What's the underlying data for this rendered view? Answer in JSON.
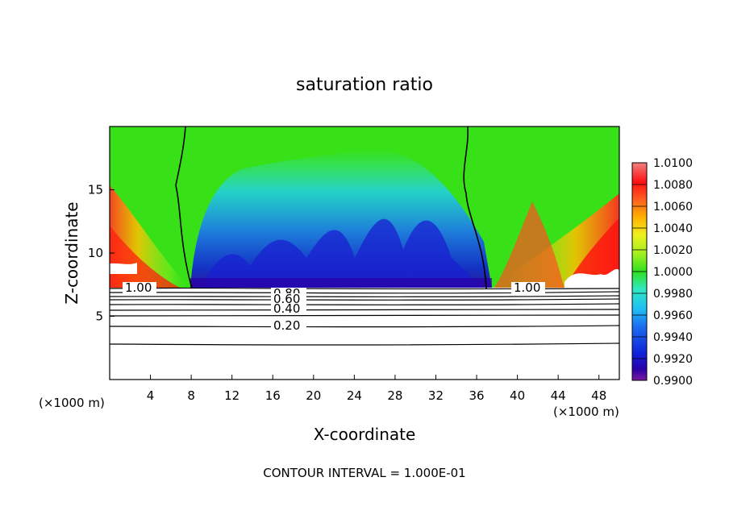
{
  "chart_data": {
    "type": "heatmap",
    "title": "saturation ratio",
    "xlabel": "X-coordinate",
    "ylabel": "Z-coordinate",
    "x_unit_left": "(×1000 m)",
    "x_unit_right": "(×1000 m)",
    "xlim": [
      0,
      50
    ],
    "ylim": [
      0,
      20
    ],
    "xticks": [
      4,
      8,
      12,
      16,
      20,
      24,
      28,
      32,
      36,
      40,
      44,
      48
    ],
    "yticks": [
      5,
      10,
      15
    ],
    "colorbar": {
      "min": 0.99,
      "max": 1.01,
      "tick_labels": [
        "0.9900",
        "0.9920",
        "0.9940",
        "0.9960",
        "0.9980",
        "1.0000",
        "1.0020",
        "1.0040",
        "1.0060",
        "1.0080",
        "1.0100"
      ],
      "colors": [
        "#7a1aa0",
        "#2a00a8",
        "#1020d8",
        "#1a70f0",
        "#20c0f5",
        "#30e8c0",
        "#40e060",
        "#30e020",
        "#a0f020",
        "#f0f020",
        "#ffb000",
        "#ff6020",
        "#ff1010",
        "#f06060"
      ]
    },
    "contour_interval_text": "CONTOUR INTERVAL = 1.000E-01",
    "contour_labels": [
      "1.00",
      "1.00",
      "0.80",
      "0.60",
      "0.40",
      "0.20"
    ],
    "saturation_boundary_x_at_z7": [
      8,
      37
    ]
  }
}
